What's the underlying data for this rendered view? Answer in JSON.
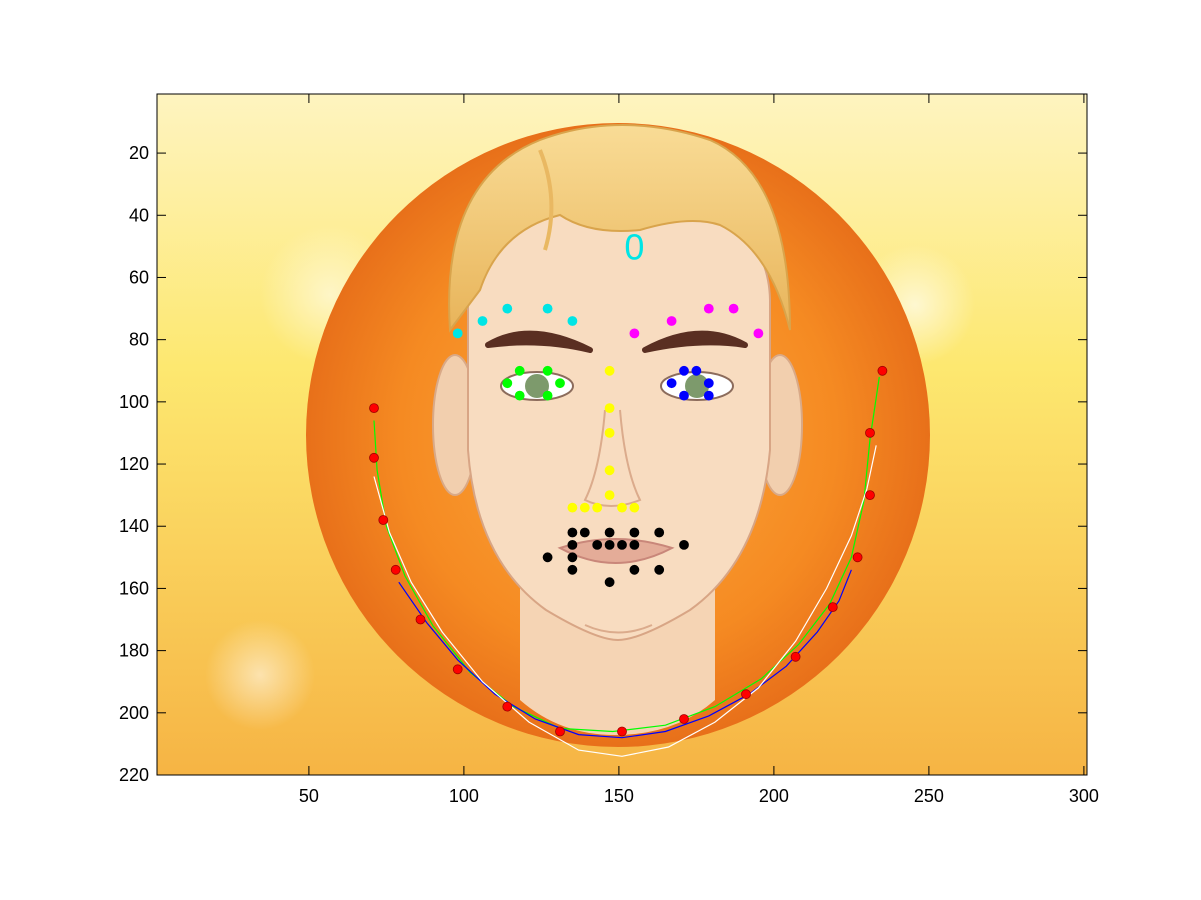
{
  "chart_data": {
    "type": "scatter",
    "title": "",
    "xlabel": "",
    "ylabel": "",
    "xlim": [
      1,
      301
    ],
    "ylim": [
      220,
      1
    ],
    "y_axis_reversed": true,
    "xticks": [
      50,
      100,
      150,
      200,
      250,
      300
    ],
    "yticks": [
      20,
      40,
      60,
      80,
      100,
      120,
      140,
      160,
      180,
      200,
      220
    ],
    "grid": false,
    "legend": "none",
    "background": "image",
    "annotations": [
      {
        "text": "0",
        "x": 155,
        "y": 50,
        "color": "#00e5e5"
      }
    ],
    "series": [
      {
        "color": "#ff0000",
        "marker": "circle",
        "points": [
          [
            71,
            102
          ],
          [
            71,
            118
          ],
          [
            74,
            138
          ],
          [
            78,
            154
          ],
          [
            86,
            170
          ],
          [
            98,
            186
          ],
          [
            114,
            198
          ],
          [
            131,
            206
          ],
          [
            151,
            206
          ],
          [
            171,
            202
          ],
          [
            191,
            194
          ],
          [
            207,
            182
          ],
          [
            219,
            166
          ],
          [
            227,
            150
          ],
          [
            231,
            130
          ],
          [
            231,
            110
          ],
          [
            235,
            90
          ]
        ]
      },
      {
        "color": "#00e5e5",
        "marker": "circle",
        "points": [
          [
            98,
            78
          ],
          [
            106,
            74
          ],
          [
            114,
            70
          ],
          [
            127,
            70
          ],
          [
            135,
            74
          ]
        ]
      },
      {
        "color": "#ff00ff",
        "marker": "circle",
        "points": [
          [
            155,
            78
          ],
          [
            167,
            74
          ],
          [
            179,
            70
          ],
          [
            187,
            70
          ],
          [
            195,
            78
          ]
        ]
      },
      {
        "color": "#ffff00",
        "marker": "circle",
        "points": [
          [
            147,
            90
          ],
          [
            147,
            102
          ],
          [
            147,
            110
          ],
          [
            147,
            122
          ],
          [
            147,
            130
          ],
          [
            135,
            134
          ],
          [
            139,
            134
          ],
          [
            143,
            134
          ],
          [
            151,
            134
          ],
          [
            155,
            134
          ]
        ]
      },
      {
        "color": "#00ff00",
        "marker": "circle",
        "points": [
          [
            118,
            90
          ],
          [
            127,
            90
          ],
          [
            114,
            94
          ],
          [
            131,
            94
          ],
          [
            118,
            98
          ],
          [
            127,
            98
          ]
        ]
      },
      {
        "color": "#0000ff",
        "marker": "circle",
        "points": [
          [
            171,
            90
          ],
          [
            175,
            90
          ],
          [
            167,
            94
          ],
          [
            179,
            94
          ],
          [
            171,
            98
          ],
          [
            179,
            98
          ]
        ]
      },
      {
        "color": "#000000",
        "marker": "circle",
        "points": [
          [
            135,
            142
          ],
          [
            139,
            142
          ],
          [
            147,
            142
          ],
          [
            155,
            142
          ],
          [
            163,
            142
          ],
          [
            127,
            150
          ],
          [
            135,
            146
          ],
          [
            143,
            146
          ],
          [
            147,
            146
          ],
          [
            151,
            146
          ],
          [
            155,
            146
          ],
          [
            171,
            146
          ],
          [
            135,
            150
          ],
          [
            135,
            154
          ],
          [
            155,
            154
          ],
          [
            163,
            154
          ],
          [
            147,
            158
          ]
        ]
      },
      {
        "color": "#00ff00",
        "marker": "line",
        "points": [
          [
            71,
            106
          ],
          [
            72,
            122
          ],
          [
            75,
            140
          ],
          [
            81,
            156
          ],
          [
            90,
            172
          ],
          [
            102,
            187
          ],
          [
            116,
            198
          ],
          [
            131,
            205
          ],
          [
            148,
            206
          ],
          [
            165,
            204
          ],
          [
            181,
            198
          ],
          [
            196,
            189
          ],
          [
            208,
            178
          ],
          [
            218,
            165
          ],
          [
            225,
            150
          ],
          [
            229,
            132
          ],
          [
            231,
            112
          ],
          [
            234,
            92
          ]
        ]
      },
      {
        "color": "#0000ff",
        "marker": "line",
        "points": [
          [
            79,
            158
          ],
          [
            88,
            171
          ],
          [
            98,
            183
          ],
          [
            110,
            194
          ],
          [
            123,
            202
          ],
          [
            137,
            207
          ],
          [
            151,
            208
          ],
          [
            165,
            206
          ],
          [
            179,
            201
          ],
          [
            192,
            194
          ],
          [
            204,
            185
          ],
          [
            214,
            174
          ],
          [
            221,
            164
          ],
          [
            225,
            154
          ]
        ]
      },
      {
        "color": "#ffffff",
        "marker": "line",
        "points": [
          [
            71,
            124
          ],
          [
            76,
            142
          ],
          [
            83,
            158
          ],
          [
            93,
            174
          ],
          [
            106,
            190
          ],
          [
            121,
            203
          ],
          [
            137,
            212
          ],
          [
            151,
            214
          ],
          [
            166,
            211
          ],
          [
            181,
            203
          ],
          [
            195,
            192
          ],
          [
            207,
            177
          ],
          [
            217,
            160
          ],
          [
            225,
            143
          ],
          [
            230,
            128
          ],
          [
            233,
            114
          ]
        ]
      }
    ]
  }
}
